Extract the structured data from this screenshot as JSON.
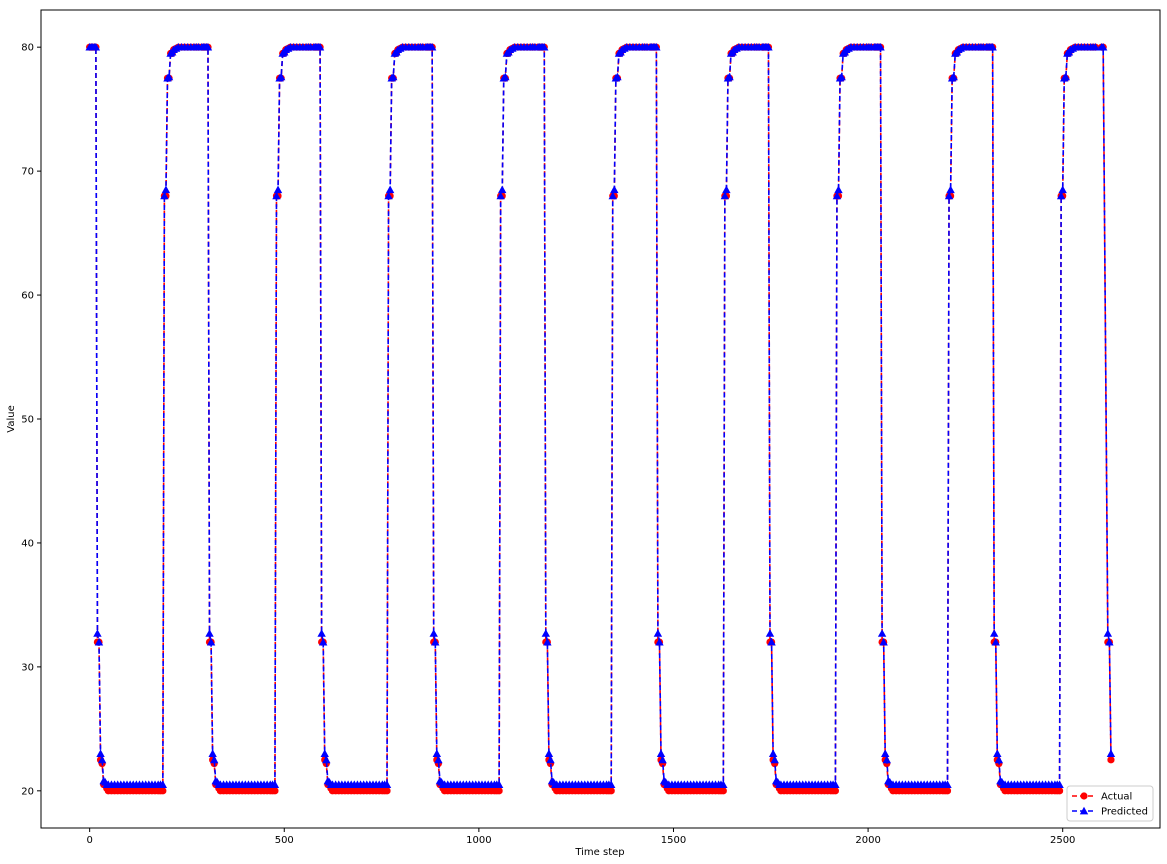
{
  "chart_data": {
    "type": "line",
    "title": "",
    "xlabel": "Time step",
    "ylabel": "Value",
    "xlim": [
      -125,
      2750
    ],
    "ylim": [
      17,
      83
    ],
    "xticks": [
      0,
      500,
      1000,
      1500,
      2000,
      2500
    ],
    "xtick_labels": [
      "0",
      "500",
      "1000",
      "1500",
      "2000",
      "2500"
    ],
    "yticks": [
      20,
      30,
      40,
      50,
      60,
      70,
      80
    ],
    "ytick_labels": [
      "20",
      "30",
      "40",
      "50",
      "60",
      "70",
      "80"
    ],
    "grid": false,
    "legend_position": "lower-right",
    "cycle_period": 288,
    "cycles": 10,
    "cycle_profile": {
      "Actual": [
        [
          0,
          80.0
        ],
        [
          4,
          80.0
        ],
        [
          8,
          80.0
        ],
        [
          12,
          80.0
        ],
        [
          16,
          80.0
        ],
        [
          20,
          32.0
        ],
        [
          24,
          32.0
        ],
        [
          28,
          22.5
        ],
        [
          32,
          22.2
        ],
        [
          36,
          20.5
        ],
        [
          40,
          20.5
        ],
        [
          44,
          20.2
        ],
        [
          48,
          20.0
        ],
        [
          56,
          20.0
        ],
        [
          64,
          20.0
        ],
        [
          72,
          20.0
        ],
        [
          80,
          20.0
        ],
        [
          88,
          20.0
        ],
        [
          96,
          20.0
        ],
        [
          104,
          20.0
        ],
        [
          112,
          20.0
        ],
        [
          120,
          20.0
        ],
        [
          128,
          20.0
        ],
        [
          136,
          20.0
        ],
        [
          144,
          20.0
        ],
        [
          152,
          20.0
        ],
        [
          160,
          20.0
        ],
        [
          168,
          20.0
        ],
        [
          176,
          20.0
        ],
        [
          182,
          20.0
        ],
        [
          188,
          20.0
        ],
        [
          192,
          68.0
        ],
        [
          196,
          68.0
        ],
        [
          200,
          77.5
        ],
        [
          204,
          77.5
        ],
        [
          208,
          79.5
        ],
        [
          212,
          79.5
        ],
        [
          216,
          79.8
        ],
        [
          222,
          79.9
        ],
        [
          228,
          80.0
        ],
        [
          236,
          80.0
        ],
        [
          244,
          80.0
        ],
        [
          252,
          80.0
        ],
        [
          260,
          80.0
        ],
        [
          268,
          80.0
        ],
        [
          274,
          80.0
        ],
        [
          280,
          80.0
        ]
      ],
      "Predicted": [
        [
          0,
          80.0
        ],
        [
          4,
          80.0
        ],
        [
          8,
          80.0
        ],
        [
          12,
          80.0
        ],
        [
          16,
          80.0
        ],
        [
          20,
          32.7
        ],
        [
          24,
          32.0
        ],
        [
          28,
          23.0
        ],
        [
          32,
          22.5
        ],
        [
          36,
          20.8
        ],
        [
          40,
          20.7
        ],
        [
          44,
          20.5
        ],
        [
          48,
          20.5
        ],
        [
          56,
          20.5
        ],
        [
          64,
          20.5
        ],
        [
          72,
          20.5
        ],
        [
          80,
          20.5
        ],
        [
          88,
          20.5
        ],
        [
          96,
          20.5
        ],
        [
          104,
          20.5
        ],
        [
          112,
          20.5
        ],
        [
          120,
          20.5
        ],
        [
          128,
          20.5
        ],
        [
          136,
          20.5
        ],
        [
          144,
          20.5
        ],
        [
          152,
          20.5
        ],
        [
          160,
          20.5
        ],
        [
          168,
          20.5
        ],
        [
          176,
          20.5
        ],
        [
          182,
          20.5
        ],
        [
          188,
          20.5
        ],
        [
          192,
          68.0
        ],
        [
          196,
          68.5
        ],
        [
          200,
          77.5
        ],
        [
          204,
          77.6
        ],
        [
          208,
          79.5
        ],
        [
          212,
          79.6
        ],
        [
          216,
          79.8
        ],
        [
          222,
          79.9
        ],
        [
          228,
          80.0
        ],
        [
          236,
          80.0
        ],
        [
          244,
          80.0
        ],
        [
          252,
          80.0
        ],
        [
          260,
          80.0
        ],
        [
          268,
          80.0
        ],
        [
          274,
          80.0
        ],
        [
          280,
          80.0
        ]
      ]
    },
    "tail": {
      "Actual": [
        [
          2600,
          80.0
        ],
        [
          2604,
          80.0
        ],
        [
          2616,
          32.0
        ],
        [
          2620,
          32.0
        ],
        [
          2624,
          22.5
        ]
      ],
      "Predicted": [
        [
          2600,
          80.0
        ],
        [
          2604,
          80.0
        ],
        [
          2616,
          32.7
        ],
        [
          2620,
          32.0
        ],
        [
          2624,
          23.0
        ]
      ]
    },
    "series": [
      {
        "name": "Actual",
        "color": "#ff0000",
        "marker": "circle",
        "linestyle": "dashed"
      },
      {
        "name": "Predicted",
        "color": "#0000ff",
        "marker": "triangle-up",
        "linestyle": "dashed"
      }
    ]
  }
}
